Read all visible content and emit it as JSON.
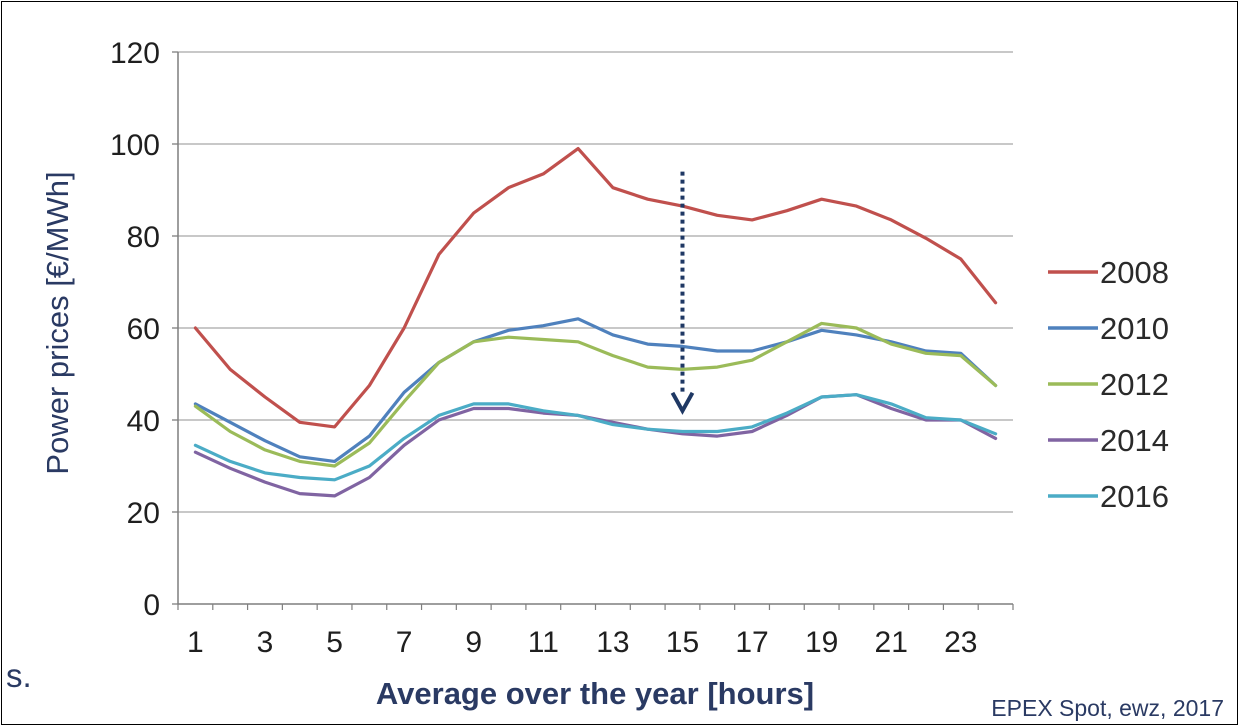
{
  "chart_data": {
    "type": "line",
    "title": "",
    "xlabel": "Average over the year [hours]",
    "ylabel": "Power prices [€/MWh]",
    "ylim": [
      0,
      120
    ],
    "yticks": [
      0,
      20,
      40,
      60,
      80,
      100,
      120
    ],
    "xticks": [
      1,
      3,
      5,
      7,
      9,
      11,
      13,
      15,
      17,
      19,
      21,
      23
    ],
    "x": [
      1,
      2,
      3,
      4,
      5,
      6,
      7,
      8,
      9,
      10,
      11,
      12,
      13,
      14,
      15,
      16,
      17,
      18,
      19,
      20,
      21,
      22,
      23,
      24
    ],
    "grid": "horizontal",
    "legend_position": "right",
    "series": [
      {
        "name": "2008",
        "color": "#c0504d",
        "values": [
          60,
          51,
          45,
          39.5,
          38.5,
          47.5,
          60,
          76,
          85,
          90.5,
          93.5,
          99,
          90.5,
          88,
          86.5,
          84.5,
          83.5,
          85.5,
          88,
          86.5,
          83.5,
          79.5,
          75,
          65.5
        ]
      },
      {
        "name": "2010",
        "color": "#4f81bd",
        "values": [
          43.5,
          39.5,
          35.5,
          32,
          31,
          36.5,
          46,
          52.5,
          57,
          59.5,
          60.5,
          62,
          58.5,
          56.5,
          56,
          55,
          55,
          57,
          59.5,
          58.5,
          57,
          55,
          54.5,
          47.5
        ]
      },
      {
        "name": "2012",
        "color": "#9bbb59",
        "values": [
          43,
          37.5,
          33.5,
          31,
          30,
          35,
          44,
          52.5,
          57,
          58,
          57.5,
          57,
          54,
          51.5,
          51,
          51.5,
          53,
          57,
          61,
          60,
          56.5,
          54.5,
          54,
          47.5
        ]
      },
      {
        "name": "2014",
        "color": "#8064a2",
        "values": [
          33,
          29.5,
          26.5,
          24,
          23.5,
          27.5,
          34.5,
          40,
          42.5,
          42.5,
          41.5,
          41,
          39.5,
          38,
          37,
          36.5,
          37.5,
          41,
          45,
          45.5,
          42.5,
          40,
          40,
          36
        ]
      },
      {
        "name": "2016",
        "color": "#4bacc6",
        "values": [
          34.5,
          31,
          28.5,
          27.5,
          27,
          30,
          36,
          41,
          43.5,
          43.5,
          42,
          41,
          39,
          38,
          37.5,
          37.5,
          38.5,
          41.5,
          45,
          45.5,
          43.5,
          40.5,
          40,
          37
        ]
      }
    ],
    "annotations": [
      {
        "type": "dashed-arrow",
        "description": "downward trend arrow",
        "from_y": 94,
        "to_y": 42,
        "at_x": 15
      }
    ],
    "source": "EPEX Spot, ewz, 2017",
    "fragment_text": "s."
  },
  "colors": {
    "axis": "#7f7f7f",
    "grid": "#a6a6a6",
    "arrow": "#1f3864"
  }
}
